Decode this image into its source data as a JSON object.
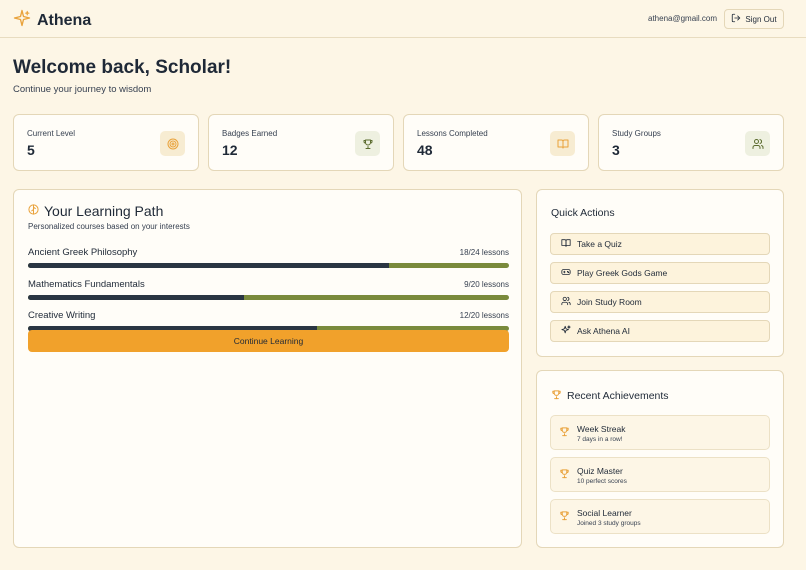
{
  "header": {
    "brand": "Athena",
    "email": "athena@gmail.com",
    "signout_label": "Sign Out"
  },
  "welcome": {
    "title": "Welcome back, Scholar!",
    "subtitle": "Continue your journey to wisdom"
  },
  "stats": [
    {
      "label": "Current Level",
      "value": "5",
      "icon": "target-icon"
    },
    {
      "label": "Badges Earned",
      "value": "12",
      "icon": "trophy-icon"
    },
    {
      "label": "Lessons Completed",
      "value": "48",
      "icon": "book-icon"
    },
    {
      "label": "Study Groups",
      "value": "3",
      "icon": "users-icon"
    }
  ],
  "learning_path": {
    "title": "Your Learning Path",
    "subtitle": "Personalized courses based on your interests",
    "courses": [
      {
        "name": "Ancient Greek Philosophy",
        "count": "18/24 lessons",
        "progress": 0.75
      },
      {
        "name": "Mathematics Fundamentals",
        "count": "9/20 lessons",
        "progress": 0.45
      },
      {
        "name": "Creative Writing",
        "count": "12/20 lessons",
        "progress": 0.6
      }
    ],
    "continue_label": "Continue Learning"
  },
  "quick_actions": {
    "title": "Quick Actions",
    "items": [
      {
        "label": "Take a Quiz",
        "icon": "book-icon"
      },
      {
        "label": "Play Greek Gods Game",
        "icon": "gamepad-icon"
      },
      {
        "label": "Join Study Room",
        "icon": "users-icon"
      },
      {
        "label": "Ask Athena AI",
        "icon": "sparkle-icon"
      }
    ]
  },
  "achievements": {
    "title": "Recent Achievements",
    "items": [
      {
        "name": "Week Streak",
        "desc": "7 days in a row!"
      },
      {
        "name": "Quiz Master",
        "desc": "10 perfect scores"
      },
      {
        "name": "Social Learner",
        "desc": "Joined 3 study groups"
      }
    ]
  },
  "colors": {
    "accent": "#f1a12b",
    "progress_fill": "#2a3542",
    "progress_track": "#7a8a3c",
    "background": "#fdf6e6"
  }
}
